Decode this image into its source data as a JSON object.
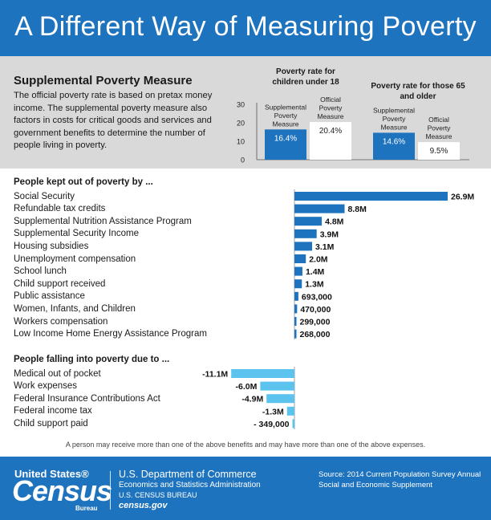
{
  "header": {
    "title": "A Different Way of Measuring Poverty"
  },
  "spm": {
    "title": "Supplemental Poverty Measure",
    "text": "The official poverty rate is based on pretax money income. The supplemental poverty measure also factors in costs for critical goods and services and government benefits to determine the number of people living in poverty."
  },
  "chart_data": [
    {
      "type": "bar",
      "title": "Poverty rate for children under 18",
      "categories": [
        "Supplemental Poverty Measure",
        "Official Poverty Measure"
      ],
      "values": [
        16.4,
        20.4
      ],
      "value_labels": [
        "16.4%",
        "20.4%"
      ],
      "yticks": [
        "30",
        "20",
        "10",
        "0"
      ],
      "ylim": [
        0,
        30
      ],
      "colors": [
        "#1e73be",
        "#ffffff"
      ]
    },
    {
      "type": "bar",
      "title": "Poverty rate for those 65 and older",
      "categories": [
        "Supplemental Poverty Measure",
        "Official Poverty Measure"
      ],
      "values": [
        14.6,
        9.5
      ],
      "value_labels": [
        "14.6%",
        "9.5%"
      ],
      "ylim": [
        0,
        30
      ],
      "colors": [
        "#1e73be",
        "#ffffff"
      ]
    },
    {
      "type": "bar",
      "orientation": "horizontal",
      "title": "People kept out of poverty by ...",
      "categories": [
        "Social Security",
        "Refundable tax credits",
        "Supplemental Nutrition Assistance Program",
        "Supplemental Security Income",
        "Housing subsidies",
        "Unemployment compensation",
        "School lunch",
        "Child support received",
        "Public assistance",
        "Women, Infants, and Children",
        "Workers compensation",
        "Low Income Home Energy Assistance Program"
      ],
      "values": [
        26900000,
        8800000,
        4800000,
        3900000,
        3100000,
        2000000,
        1400000,
        1300000,
        693000,
        470000,
        299000,
        268000
      ],
      "value_labels": [
        "26.9M",
        "8.8M",
        "4.8M",
        "3.9M",
        "3.1M",
        "2.0M",
        "1.4M",
        "1.3M",
        "693,000",
        "470,000",
        "299,000",
        "268,000"
      ],
      "color": "#1e73be"
    },
    {
      "type": "bar",
      "orientation": "horizontal",
      "title": "People falling into poverty due to ...",
      "categories": [
        "Medical out of pocket",
        "Work expenses",
        "Federal Insurance Contributions Act",
        "Federal income tax",
        "Child support paid"
      ],
      "values": [
        -11100000,
        -6000000,
        -4900000,
        -1300000,
        -349000
      ],
      "value_labels": [
        "-11.1M",
        "-6.0M",
        "-4.9M",
        "-1.3M",
        "- 349,000"
      ],
      "color": "#5bc3ee"
    }
  ],
  "footnote": "A person may receive more than one of the above benefits and may have more than one of the above expenses.",
  "footer": {
    "logo_top": "United States®",
    "logo_big": "Census",
    "logo_sub": "Bureau",
    "dept_main": "U.S. Department of Commerce",
    "dept_line2": "Economics and Statistics Administration",
    "dept_line3": "U.S. CENSUS BUREAU",
    "dept_line4": "census.gov",
    "source": "Source: 2014 Current Population Survey Annual Social and Economic Supplement"
  }
}
